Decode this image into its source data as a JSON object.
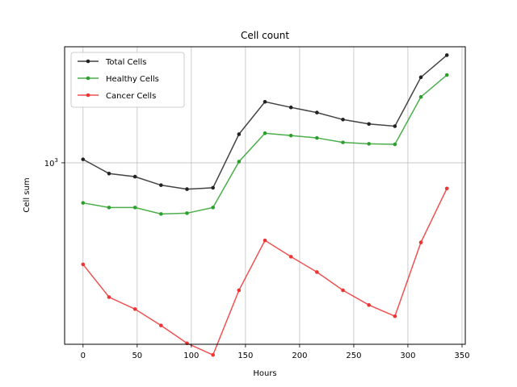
{
  "chart_data": {
    "type": "line",
    "title": "Cell count",
    "xlabel": "Hours",
    "ylabel": "Cell sum",
    "xlim": [
      -17,
      353
    ],
    "ylim": [
      392,
      1820
    ],
    "yscale": "log",
    "grid": true,
    "legend_position": "top-left",
    "x_ticks": [
      0,
      50,
      100,
      150,
      200,
      250,
      300,
      350
    ],
    "x_tick_labels": [
      "0",
      "50",
      "100",
      "150",
      "200",
      "250",
      "300",
      "350"
    ],
    "y_ticks": [
      1000
    ],
    "y_tick_labels": [
      "10",
      "3"
    ],
    "x": [
      0,
      24,
      48,
      72,
      96,
      120,
      144,
      168,
      192,
      216,
      240,
      264,
      288,
      312,
      336
    ],
    "series": [
      {
        "name": "Total Cells",
        "color": "#222222",
        "values": [
          1018,
          946,
          931,
          891,
          873,
          879,
          1159,
          1370,
          1331,
          1296,
          1250,
          1222,
          1208,
          1555,
          1743
        ]
      },
      {
        "name": "Healthy Cells",
        "color": "#2ca02c",
        "values": [
          813,
          794,
          794,
          768,
          771,
          794,
          1006,
          1165,
          1151,
          1137,
          1111,
          1103,
          1100,
          1405,
          1573
        ]
      },
      {
        "name": "Cancer Cells",
        "color": "#ee3333",
        "values": [
          592,
          500,
          470,
          432,
          394,
          371,
          518,
          670,
          616,
          569,
          518,
          480,
          453,
          663,
          876
        ]
      }
    ]
  }
}
